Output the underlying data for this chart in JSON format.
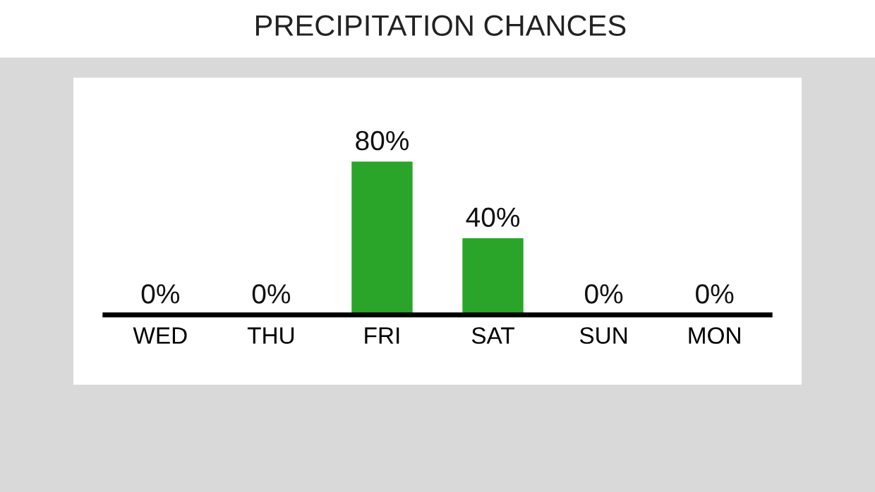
{
  "chart_data": {
    "type": "bar",
    "title": "PRECIPITATION CHANCES",
    "categories": [
      "WED",
      "THU",
      "FRI",
      "SAT",
      "SUN",
      "MON"
    ],
    "values": [
      0,
      0,
      80,
      40,
      0,
      0
    ],
    "value_labels": [
      "0%",
      "0%",
      "80%",
      "40%",
      "0%",
      "0%"
    ],
    "color": "#2aa52a",
    "grid": false,
    "legend": false
  }
}
